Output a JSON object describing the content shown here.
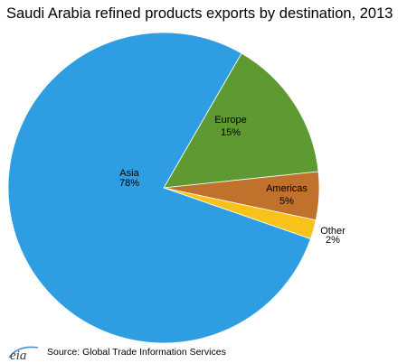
{
  "chart_data": {
    "type": "pie",
    "title": "Saudi Arabia refined products exports by destination, 2013",
    "slices": [
      {
        "label": "Europe",
        "value_label": "15%",
        "value": 15,
        "color": "#5e9a31"
      },
      {
        "label": "Americas",
        "value_label": "5%",
        "value": 5,
        "color": "#c0712c"
      },
      {
        "label": "Other",
        "value_label": "2%",
        "value": 2,
        "color": "#f9c21a"
      },
      {
        "label": "Asia",
        "value_label": "78%",
        "value": 78,
        "color": "#2f9de2"
      }
    ],
    "source": "Source: Global Trade Information Services"
  },
  "logo": {
    "text": "eia"
  }
}
